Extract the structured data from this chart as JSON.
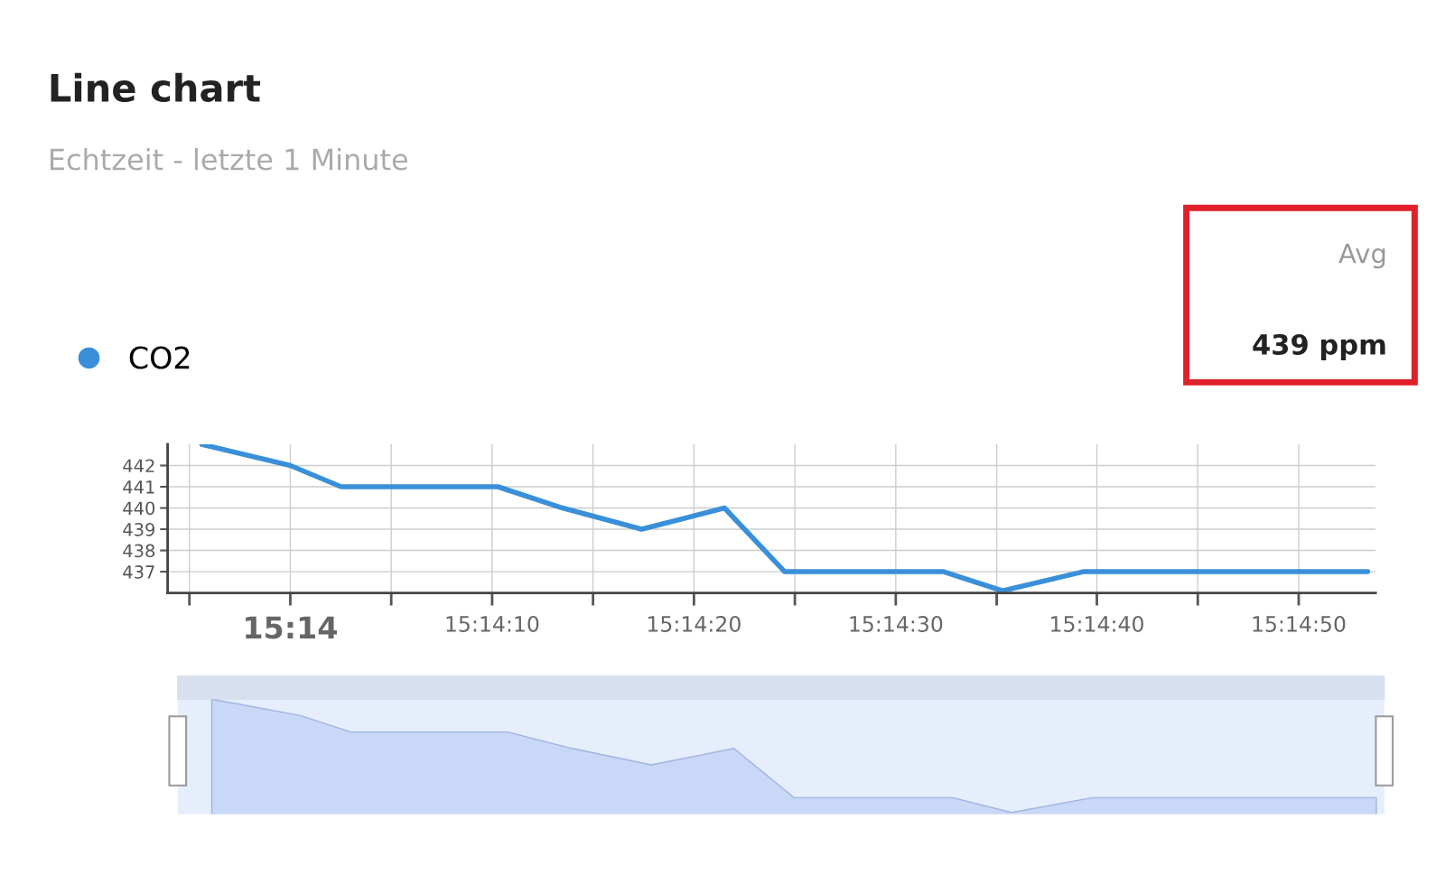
{
  "chart_data": {
    "type": "line",
    "title": "Line chart",
    "subtitle": "Echtzeit - letzte 1 Minute",
    "annotations": [
      "Avg",
      "439 ppm"
    ],
    "x": [
      15.23211,
      15.23333,
      15.23403,
      15.23619,
      15.23708,
      15.23817,
      15.23931,
      15.24014,
      15.24233,
      15.24314,
      15.24425,
      15.24817
    ],
    "series": [
      {
        "name": "CO2",
        "color": "#3a8fd9",
        "values": [
          443,
          442,
          441,
          441,
          440,
          439,
          440,
          437,
          437,
          436.1,
          437,
          437
        ]
      }
    ],
    "xlim": [
      15.23164,
      15.24828
    ],
    "xticks": [
      {
        "value": 15.23194,
        "label": null
      },
      {
        "value": 15.23333,
        "label": "15:14"
      },
      {
        "value": 15.23472,
        "label": null
      },
      {
        "value": 15.23611,
        "label": "15:14:10"
      },
      {
        "value": 15.2375,
        "label": null
      },
      {
        "value": 15.23889,
        "label": "15:14:20"
      },
      {
        "value": 15.24028,
        "label": null
      },
      {
        "value": 15.24167,
        "label": "15:14:30"
      },
      {
        "value": 15.24306,
        "label": null
      },
      {
        "value": 15.24444,
        "label": "15:14:40"
      },
      {
        "value": 15.24583,
        "label": null
      },
      {
        "value": 15.24722,
        "label": "15:14:50"
      }
    ],
    "ylim": [
      436,
      443
    ],
    "yticks": [
      437,
      438,
      439,
      440,
      441,
      442
    ],
    "grid": true,
    "legend": "top left"
  }
}
